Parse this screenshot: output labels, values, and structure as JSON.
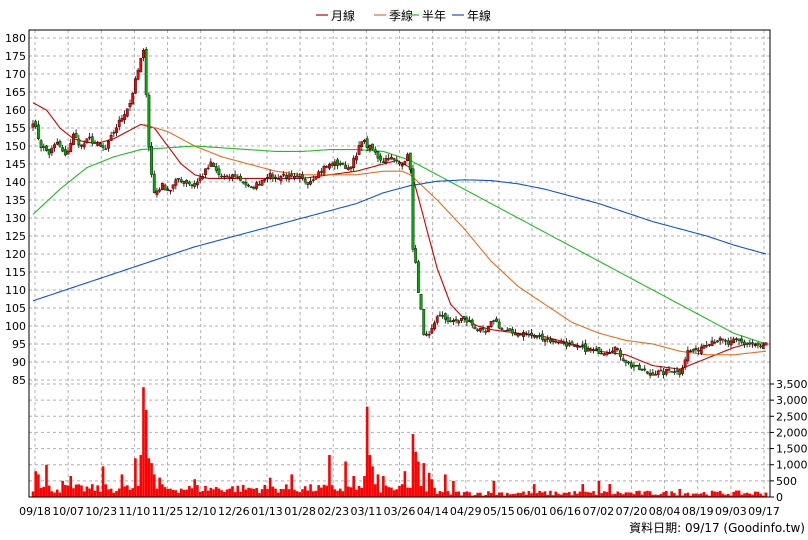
{
  "legend": [
    {
      "label": "月線",
      "color": "#cc0000"
    },
    {
      "label": "季線",
      "color": "#e07020"
    },
    {
      "label": "半年",
      "color": "#22bb22"
    },
    {
      "label": "年線",
      "color": "#1155cc"
    }
  ],
  "footer": "資料日期: 09/17  (Goodinfo.tw)",
  "chart_data": {
    "type": "candlestick",
    "price_axis": {
      "min": 85,
      "max": 180,
      "step": 5,
      "position": "left",
      "ticks": [
        "180",
        "175",
        "170",
        "165",
        "160",
        "155",
        "150",
        "145",
        "140",
        "135",
        "130",
        "125",
        "120",
        "115",
        "110",
        "105",
        "100",
        "95",
        "90",
        "85"
      ]
    },
    "volume_axis": {
      "min": 0,
      "max": 3500,
      "position": "right",
      "ticks": [
        "3,500",
        "3,000",
        "2,500",
        "2,000",
        "1,500",
        "1,000",
        "500",
        "0"
      ]
    },
    "x_ticks": [
      "09/18",
      "10/07",
      "10/23",
      "11/10",
      "11/25",
      "12/10",
      "12/26",
      "01/13",
      "01/28",
      "02/23",
      "03/11",
      "03/26",
      "04/14",
      "04/29",
      "05/15",
      "06/01",
      "06/16",
      "07/02",
      "07/20",
      "08/04",
      "08/19",
      "09/03",
      "09/17"
    ],
    "grid": true,
    "colors": {
      "up": "#ff0000",
      "down": "#00aa00",
      "volume": "#ff0000",
      "grid": "#b0b0b0"
    },
    "close_anchors": [
      [
        0,
        157
      ],
      [
        3,
        150
      ],
      [
        6,
        148
      ],
      [
        9,
        151
      ],
      [
        12,
        147
      ],
      [
        15,
        153
      ],
      [
        18,
        150
      ],
      [
        21,
        152
      ],
      [
        24,
        150
      ],
      [
        27,
        149
      ],
      [
        30,
        154
      ],
      [
        33,
        158
      ],
      [
        36,
        162
      ],
      [
        38,
        168
      ],
      [
        40,
        174
      ],
      [
        41,
        176
      ],
      [
        42,
        165
      ],
      [
        43,
        150
      ],
      [
        44,
        142
      ],
      [
        45,
        137
      ],
      [
        48,
        139
      ],
      [
        51,
        138
      ],
      [
        54,
        141
      ],
      [
        57,
        140
      ],
      [
        60,
        139
      ],
      [
        63,
        142
      ],
      [
        66,
        145
      ],
      [
        69,
        142
      ],
      [
        72,
        141
      ],
      [
        75,
        142
      ],
      [
        78,
        140
      ],
      [
        81,
        138
      ],
      [
        84,
        140
      ],
      [
        87,
        142
      ],
      [
        90,
        141
      ],
      [
        93,
        142
      ],
      [
        96,
        141
      ],
      [
        99,
        141
      ],
      [
        102,
        140
      ],
      [
        105,
        142
      ],
      [
        108,
        144
      ],
      [
        111,
        145
      ],
      [
        114,
        145
      ],
      [
        117,
        144
      ],
      [
        120,
        147
      ],
      [
        122,
        152
      ],
      [
        124,
        150
      ],
      [
        126,
        149
      ],
      [
        128,
        147
      ],
      [
        130,
        146
      ],
      [
        132,
        147
      ],
      [
        134,
        146
      ],
      [
        136,
        145
      ],
      [
        139,
        147
      ],
      [
        140,
        144
      ],
      [
        141,
        121
      ],
      [
        142,
        117
      ],
      [
        143,
        110
      ],
      [
        144,
        104
      ],
      [
        145,
        97
      ],
      [
        147,
        97
      ],
      [
        150,
        103
      ],
      [
        153,
        102
      ],
      [
        156,
        101
      ],
      [
        159,
        102
      ],
      [
        162,
        101
      ],
      [
        165,
        99
      ],
      [
        168,
        98
      ],
      [
        171,
        102
      ],
      [
        174,
        99
      ],
      [
        177,
        98
      ],
      [
        180,
        98
      ],
      [
        183,
        98
      ],
      [
        186,
        97
      ],
      [
        189,
        97
      ],
      [
        192,
        96
      ],
      [
        195,
        96
      ],
      [
        198,
        95
      ],
      [
        201,
        94
      ],
      [
        204,
        94
      ],
      [
        207,
        93
      ],
      [
        210,
        93
      ],
      [
        213,
        93
      ],
      [
        216,
        94
      ],
      [
        219,
        91
      ],
      [
        222,
        89
      ],
      [
        225,
        88
      ],
      [
        228,
        87
      ],
      [
        231,
        87
      ],
      [
        234,
        87
      ],
      [
        237,
        88
      ],
      [
        240,
        87
      ],
      [
        243,
        93
      ],
      [
        246,
        93
      ],
      [
        249,
        95
      ],
      [
        252,
        96
      ],
      [
        255,
        96
      ],
      [
        258,
        95
      ],
      [
        261,
        96
      ],
      [
        264,
        95
      ],
      [
        267,
        95
      ],
      [
        270,
        94
      ],
      [
        272,
        95
      ]
    ],
    "volume_spikes": [
      [
        1,
        800
      ],
      [
        2,
        700
      ],
      [
        5,
        1000
      ],
      [
        11,
        500
      ],
      [
        14,
        650
      ],
      [
        26,
        950
      ],
      [
        33,
        700
      ],
      [
        38,
        1200
      ],
      [
        40,
        1300
      ],
      [
        41,
        3400
      ],
      [
        42,
        2700
      ],
      [
        43,
        1200
      ],
      [
        44,
        1050
      ],
      [
        45,
        700
      ],
      [
        47,
        600
      ],
      [
        60,
        550
      ],
      [
        88,
        600
      ],
      [
        96,
        700
      ],
      [
        110,
        1300
      ],
      [
        116,
        1100
      ],
      [
        119,
        650
      ],
      [
        123,
        650
      ],
      [
        124,
        2800
      ],
      [
        125,
        1300
      ],
      [
        126,
        950
      ],
      [
        128,
        700
      ],
      [
        130,
        650
      ],
      [
        138,
        800
      ],
      [
        141,
        1950
      ],
      [
        142,
        1400
      ],
      [
        143,
        1100
      ],
      [
        145,
        1050
      ],
      [
        147,
        750
      ],
      [
        148,
        550
      ],
      [
        153,
        700
      ],
      [
        156,
        500
      ],
      [
        171,
        500
      ],
      [
        186,
        400
      ],
      [
        204,
        400
      ],
      [
        210,
        500
      ],
      [
        214,
        400
      ],
      [
        240,
        250
      ]
    ],
    "moving_averages": {
      "月線": [
        [
          0,
          162
        ],
        [
          5,
          160
        ],
        [
          10,
          155
        ],
        [
          15,
          152
        ],
        [
          20,
          151
        ],
        [
          25,
          151
        ],
        [
          30,
          152
        ],
        [
          35,
          154
        ],
        [
          40,
          156
        ],
        [
          45,
          155
        ],
        [
          50,
          150
        ],
        [
          55,
          145
        ],
        [
          60,
          142
        ],
        [
          65,
          141
        ],
        [
          70,
          141
        ],
        [
          80,
          141
        ],
        [
          90,
          141
        ],
        [
          100,
          141
        ],
        [
          110,
          142
        ],
        [
          120,
          143
        ],
        [
          130,
          145
        ],
        [
          135,
          146
        ],
        [
          140,
          144
        ],
        [
          145,
          130
        ],
        [
          150,
          116
        ],
        [
          155,
          106
        ],
        [
          160,
          102
        ],
        [
          165,
          100
        ],
        [
          170,
          99
        ],
        [
          180,
          98
        ],
        [
          190,
          97
        ],
        [
          200,
          95
        ],
        [
          210,
          93
        ],
        [
          220,
          92
        ],
        [
          230,
          89
        ],
        [
          240,
          88
        ],
        [
          250,
          91
        ],
        [
          260,
          94
        ],
        [
          265,
          95
        ],
        [
          272,
          95
        ]
      ],
      "季線": [
        [
          41,
          156
        ],
        [
          50,
          154
        ],
        [
          60,
          150
        ],
        [
          70,
          147
        ],
        [
          80,
          145
        ],
        [
          90,
          143
        ],
        [
          100,
          142
        ],
        [
          110,
          142
        ],
        [
          120,
          142
        ],
        [
          130,
          143
        ],
        [
          137,
          143
        ],
        [
          140,
          142
        ],
        [
          150,
          135
        ],
        [
          160,
          127
        ],
        [
          170,
          118
        ],
        [
          180,
          111
        ],
        [
          190,
          106
        ],
        [
          200,
          101
        ],
        [
          210,
          98
        ],
        [
          220,
          96
        ],
        [
          230,
          95
        ],
        [
          240,
          93
        ],
        [
          250,
          92
        ],
        [
          260,
          92
        ],
        [
          272,
          93
        ]
      ],
      "半年": [
        [
          0,
          131
        ],
        [
          10,
          138
        ],
        [
          20,
          144
        ],
        [
          30,
          147
        ],
        [
          40,
          149
        ],
        [
          50,
          149.5
        ],
        [
          60,
          150
        ],
        [
          70,
          149.5
        ],
        [
          80,
          149
        ],
        [
          90,
          148.5
        ],
        [
          100,
          148.5
        ],
        [
          110,
          149
        ],
        [
          120,
          149
        ],
        [
          130,
          148.5
        ],
        [
          140,
          146
        ],
        [
          150,
          142
        ],
        [
          160,
          138
        ],
        [
          170,
          134
        ],
        [
          180,
          130
        ],
        [
          190,
          126
        ],
        [
          200,
          122
        ],
        [
          210,
          118
        ],
        [
          220,
          114
        ],
        [
          230,
          110
        ],
        [
          240,
          106
        ],
        [
          250,
          102
        ],
        [
          260,
          98
        ],
        [
          272,
          95
        ]
      ],
      "年線": [
        [
          0,
          107
        ],
        [
          20,
          112
        ],
        [
          40,
          117
        ],
        [
          60,
          122
        ],
        [
          80,
          126
        ],
        [
          100,
          130
        ],
        [
          120,
          134
        ],
        [
          130,
          137
        ],
        [
          140,
          139
        ],
        [
          150,
          140.2
        ],
        [
          160,
          140.6
        ],
        [
          170,
          140.4
        ],
        [
          180,
          139.5
        ],
        [
          190,
          138
        ],
        [
          200,
          136
        ],
        [
          210,
          134
        ],
        [
          220,
          131.5
        ],
        [
          230,
          129
        ],
        [
          240,
          127
        ],
        [
          250,
          125
        ],
        [
          260,
          122.5
        ],
        [
          272,
          120
        ]
      ]
    }
  }
}
